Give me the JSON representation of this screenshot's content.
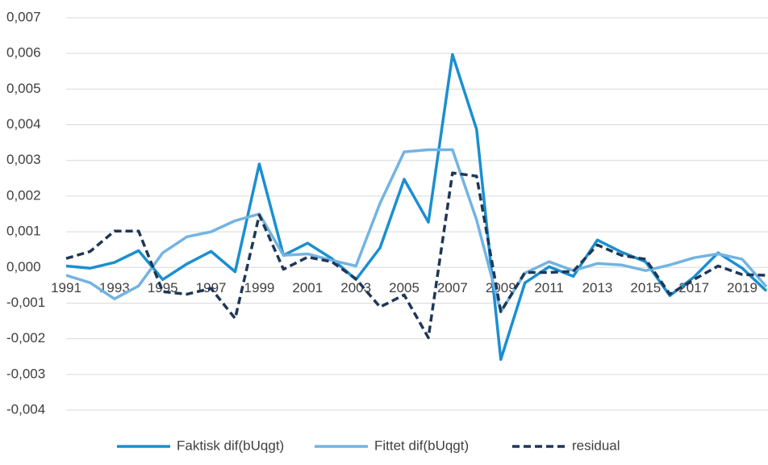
{
  "chart_data": {
    "type": "line",
    "categories": [
      "1991",
      null,
      "1993",
      null,
      "1995",
      null,
      "1997",
      null,
      "1999",
      null,
      "2001",
      null,
      "2003",
      null,
      "2005",
      null,
      "2007",
      null,
      "2009",
      null,
      "2011",
      null,
      "2013",
      null,
      "2015",
      null,
      "2017",
      null,
      "2019",
      null
    ],
    "series": [
      {
        "name": "Faktisk dif(bUqgt)",
        "color": "#1a8fd0",
        "dash": false,
        "values": [
          4e-05,
          -2e-05,
          0.00014,
          0.00047,
          -0.00034,
          0.0001,
          0.00045,
          -0.00012,
          0.0029,
          0.00034,
          0.00068,
          0.00025,
          -0.00034,
          0.00055,
          0.00247,
          0.00127,
          0.00597,
          0.00387,
          -0.00258,
          -0.00043,
          2e-05,
          -0.00025,
          0.00077,
          0.00043,
          0.00016,
          -0.00079,
          -0.00027,
          0.00041,
          -2e-05,
          -0.00066
        ]
      },
      {
        "name": "Fittet dif(bUqgt)",
        "color": "#72b4e2",
        "dash": false,
        "values": [
          -0.00022,
          -0.00043,
          -0.00088,
          -0.00052,
          0.00041,
          0.00086,
          0.001,
          0.00131,
          0.0015,
          0.00034,
          0.00038,
          0.0002,
          4e-05,
          0.0018,
          0.00324,
          0.0033,
          0.0033,
          0.00133,
          -0.00124,
          -0.00016,
          0.00016,
          -9e-05,
          0.00011,
          7e-05,
          -9e-05,
          7e-05,
          0.00027,
          0.00038,
          0.00023,
          -0.00054
        ]
      },
      {
        "name": "residual",
        "color": "#1f3756",
        "dash": true,
        "values": [
          0.00025,
          0.00045,
          0.00102,
          0.00102,
          -0.00068,
          -0.00075,
          -0.00059,
          -0.00143,
          0.00147,
          -5e-05,
          0.00029,
          0.00016,
          -0.00032,
          -0.00111,
          -0.00077,
          -0.00197,
          0.00265,
          0.00256,
          -0.00124,
          -0.00014,
          -0.00014,
          -0.00011,
          0.00063,
          0.00034,
          0.00023,
          -0.00075,
          -0.00034,
          4e-05,
          -0.0002,
          -0.00022
        ]
      }
    ],
    "ylim": [
      -0.004,
      0.007
    ],
    "yticks": [
      {
        "value": -0.004,
        "label": "-0,004"
      },
      {
        "value": -0.003,
        "label": "-0,003"
      },
      {
        "value": -0.002,
        "label": "-0,002"
      },
      {
        "value": -0.001,
        "label": "-0,001"
      },
      {
        "value": 0,
        "label": "0,000"
      },
      {
        "value": 0.001,
        "label": "0,001"
      },
      {
        "value": 0.002,
        "label": "0,002"
      },
      {
        "value": 0.003,
        "label": "0,003"
      },
      {
        "value": 0.004,
        "label": "0,004"
      },
      {
        "value": 0.005,
        "label": "0,005"
      },
      {
        "value": 0.006,
        "label": "0,006"
      },
      {
        "value": 0.007,
        "label": "0,007"
      }
    ],
    "grid": true,
    "legend": "bottom"
  }
}
